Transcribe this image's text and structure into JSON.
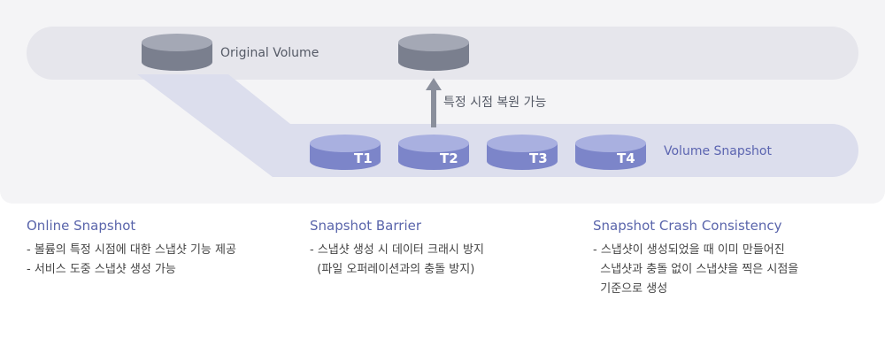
{
  "diagram": {
    "original_volume_label": "Original Volume",
    "restore_label": "특정 시점 복원 가능",
    "snapshot_track_label": "Volume Snapshot",
    "snapshots": [
      "T1",
      "T2",
      "T3",
      "T4"
    ],
    "colors": {
      "panel": "#f4f4f6",
      "track": "#e6e6ec",
      "snapshot_track": "#dcdeed",
      "gray_cylinder": "#7a7f8e",
      "gray_cylinder_top": "#a4a8b5",
      "blue_cylinder": "#7c85c9",
      "blue_cylinder_top": "#a9b0e0",
      "arrow": "#8a8f9c"
    }
  },
  "features": [
    {
      "title": "Online Snapshot",
      "lines": [
        "- 볼륨의 특정 시점에 대한 스냅샷 기능 제공",
        "- 서비스 도중 스냅샷 생성 가능"
      ]
    },
    {
      "title": "Snapshot Barrier",
      "lines": [
        "- 스냅샷 생성 시 데이터 크래시 방지",
        "  (파일 오퍼레이션과의 충돌 방지)"
      ]
    },
    {
      "title": "Snapshot Crash Consistency",
      "lines": [
        "- 스냅샷이 생성되었을 때 이미 만들어진",
        "  스냅샷과 충돌 없이 스냅샷을 찍은 시점을",
        "  기준으로 생성"
      ]
    }
  ]
}
